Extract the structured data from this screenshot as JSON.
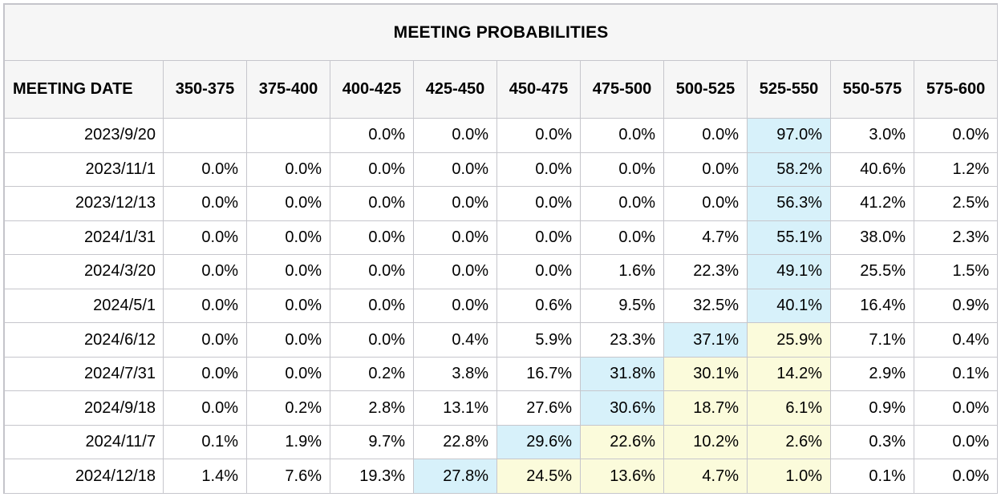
{
  "title": "MEETING PROBABILITIES",
  "colors": {
    "highlight_blue": "#d7f1fa",
    "highlight_yellow": "#fbfbdb",
    "header_background": "#f6f6f6",
    "border": "#c6c6cc"
  },
  "columns": [
    "MEETING DATE",
    "350-375",
    "375-400",
    "400-425",
    "425-450",
    "450-475",
    "475-500",
    "500-525",
    "525-550",
    "550-575",
    "575-600"
  ],
  "rows": [
    {
      "date": "2023/9/20",
      "values": [
        "",
        "",
        "0.0%",
        "0.0%",
        "0.0%",
        "0.0%",
        "0.0%",
        "97.0%",
        "3.0%",
        "0.0%"
      ],
      "blue": 7,
      "yellow": []
    },
    {
      "date": "2023/11/1",
      "values": [
        "0.0%",
        "0.0%",
        "0.0%",
        "0.0%",
        "0.0%",
        "0.0%",
        "0.0%",
        "58.2%",
        "40.6%",
        "1.2%"
      ],
      "blue": 7,
      "yellow": []
    },
    {
      "date": "2023/12/13",
      "values": [
        "0.0%",
        "0.0%",
        "0.0%",
        "0.0%",
        "0.0%",
        "0.0%",
        "0.0%",
        "56.3%",
        "41.2%",
        "2.5%"
      ],
      "blue": 7,
      "yellow": []
    },
    {
      "date": "2024/1/31",
      "values": [
        "0.0%",
        "0.0%",
        "0.0%",
        "0.0%",
        "0.0%",
        "0.0%",
        "4.7%",
        "55.1%",
        "38.0%",
        "2.3%"
      ],
      "blue": 7,
      "yellow": []
    },
    {
      "date": "2024/3/20",
      "values": [
        "0.0%",
        "0.0%",
        "0.0%",
        "0.0%",
        "0.0%",
        "1.6%",
        "22.3%",
        "49.1%",
        "25.5%",
        "1.5%"
      ],
      "blue": 7,
      "yellow": []
    },
    {
      "date": "2024/5/1",
      "values": [
        "0.0%",
        "0.0%",
        "0.0%",
        "0.0%",
        "0.6%",
        "9.5%",
        "32.5%",
        "40.1%",
        "16.4%",
        "0.9%"
      ],
      "blue": 7,
      "yellow": []
    },
    {
      "date": "2024/6/12",
      "values": [
        "0.0%",
        "0.0%",
        "0.0%",
        "0.4%",
        "5.9%",
        "23.3%",
        "37.1%",
        "25.9%",
        "7.1%",
        "0.4%"
      ],
      "blue": 6,
      "yellow": [
        7
      ]
    },
    {
      "date": "2024/7/31",
      "values": [
        "0.0%",
        "0.0%",
        "0.2%",
        "3.8%",
        "16.7%",
        "31.8%",
        "30.1%",
        "14.2%",
        "2.9%",
        "0.1%"
      ],
      "blue": 5,
      "yellow": [
        6,
        7
      ]
    },
    {
      "date": "2024/9/18",
      "values": [
        "0.0%",
        "0.2%",
        "2.8%",
        "13.1%",
        "27.6%",
        "30.6%",
        "18.7%",
        "6.1%",
        "0.9%",
        "0.0%"
      ],
      "blue": 5,
      "yellow": [
        6,
        7
      ]
    },
    {
      "date": "2024/11/7",
      "values": [
        "0.1%",
        "1.9%",
        "9.7%",
        "22.8%",
        "29.6%",
        "22.6%",
        "10.2%",
        "2.6%",
        "0.3%",
        "0.0%"
      ],
      "blue": 4,
      "yellow": [
        5,
        6,
        7
      ]
    },
    {
      "date": "2024/12/18",
      "values": [
        "1.4%",
        "7.6%",
        "19.3%",
        "27.8%",
        "24.5%",
        "13.6%",
        "4.7%",
        "1.0%",
        "0.1%",
        "0.0%"
      ],
      "blue": 3,
      "yellow": [
        4,
        5,
        6,
        7
      ]
    }
  ]
}
